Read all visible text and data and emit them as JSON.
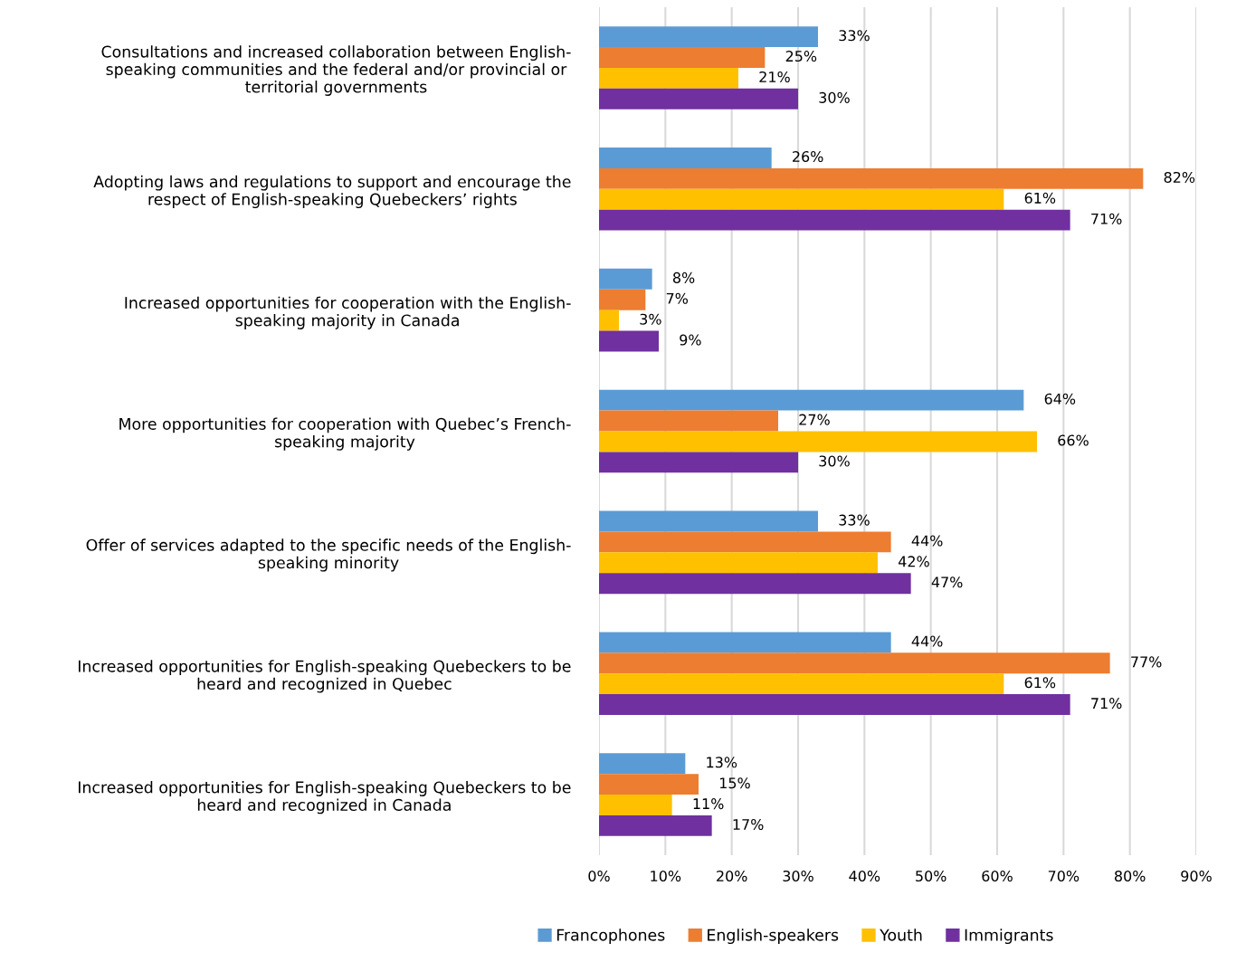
{
  "chart_data": {
    "type": "bar",
    "orientation": "horizontal",
    "categories": [
      "Consultations and increased collaboration between English-\nspeaking communities and the federal and/or provincial or\nterritorial governments",
      "Adopting laws and regulations to support and encourage the\nrespect of English-speaking Quebeckers’ rights",
      "Increased opportunities for cooperation with the English-\nspeaking majority in Canada",
      "More opportunities for cooperation with Quebec’s French-\nspeaking majority",
      "Offer of services adapted to the specific needs of the English-\nspeaking minority",
      "Increased opportunities for English-speaking Quebeckers to be\nheard and recognized in Quebec",
      "Increased opportunities for English-speaking Quebeckers to be\nheard and recognized in Canada"
    ],
    "series": [
      {
        "name": "Francophones",
        "color": "#5b9bd5",
        "values": [
          33,
          26,
          8,
          64,
          33,
          44,
          13
        ],
        "value_labels": [
          "33%",
          "26%",
          "8%",
          "64%",
          "33%",
          "44%",
          "13%"
        ]
      },
      {
        "name": "English-speakers",
        "color": "#ed7d31",
        "values": [
          25,
          82,
          7,
          27,
          44,
          77,
          15
        ],
        "value_labels": [
          "25%",
          "82%",
          "7%",
          "27%",
          "44%",
          "77%",
          "15%"
        ]
      },
      {
        "name": "Youth",
        "color": "#ffc000",
        "values": [
          21,
          61,
          3,
          66,
          42,
          61,
          11
        ],
        "value_labels": [
          "21%",
          "61%",
          "3%",
          "66%",
          "42%",
          "61%",
          "11%"
        ]
      },
      {
        "name": "Immigrants",
        "color": "#7030a0",
        "values": [
          30,
          71,
          9,
          30,
          47,
          71,
          17
        ],
        "value_labels": [
          "30%",
          "71%",
          "9%",
          "30%",
          "47%",
          "71%",
          "17%"
        ]
      }
    ],
    "xlim": [
      0,
      90
    ],
    "xticks": [
      {
        "value": 0,
        "label": "0%"
      },
      {
        "value": 10,
        "label": "10%"
      },
      {
        "value": 20,
        "label": "20%"
      },
      {
        "value": 30,
        "label": "30%"
      },
      {
        "value": 40,
        "label": "40%"
      },
      {
        "value": 50,
        "label": "50%"
      },
      {
        "value": 60,
        "label": "60%"
      },
      {
        "value": 70,
        "label": "70%"
      },
      {
        "value": 80,
        "label": "80%"
      },
      {
        "value": 90,
        "label": "90%"
      }
    ],
    "grid": "x",
    "legend": "bottom"
  }
}
